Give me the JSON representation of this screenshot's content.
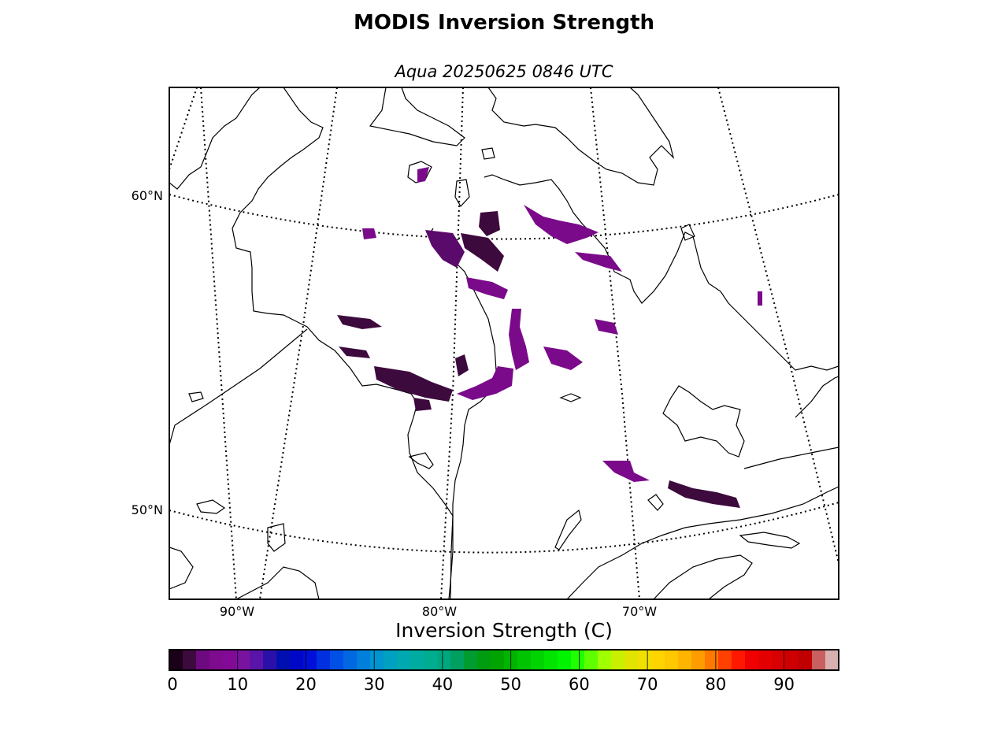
{
  "title": "MODIS Inversion Strength",
  "subtitle": "Aqua 20250625 0846 UTC",
  "map": {
    "lat_labels": [
      "60°N",
      "50°N"
    ],
    "lon_labels": [
      "90°W",
      "80°W",
      "70°W"
    ]
  },
  "colorbar": {
    "label": "Inversion Strength (C)",
    "ticks": [
      "0",
      "10",
      "20",
      "30",
      "40",
      "50",
      "60",
      "70",
      "80",
      "90"
    ],
    "colors": [
      "#1a0018",
      "#3d0a3d",
      "#6e0a80",
      "#7e0a8e",
      "#820a96",
      "#7a12a0",
      "#5a14a8",
      "#2a10a8",
      "#0010b0",
      "#0008c8",
      "#0010d8",
      "#0030e0",
      "#0050e8",
      "#0068e0",
      "#0080dc",
      "#0094d0",
      "#00a0c0",
      "#00a8b0",
      "#00aca0",
      "#00ac90",
      "#00a880",
      "#00a060",
      "#009c30",
      "#009c10",
      "#00a400",
      "#00b400",
      "#00c400",
      "#00d400",
      "#00e400",
      "#00f400",
      "#20ff00",
      "#60ff00",
      "#a0ff00",
      "#c8f000",
      "#e0e400",
      "#f0e000",
      "#ffd400",
      "#ffc800",
      "#ffb400",
      "#ff9c00",
      "#ff7800",
      "#ff4000",
      "#ff1800",
      "#f00000",
      "#e40000",
      "#d80000",
      "#cc0000",
      "#c00000",
      "#c86060",
      "#d8b0b0"
    ]
  }
}
